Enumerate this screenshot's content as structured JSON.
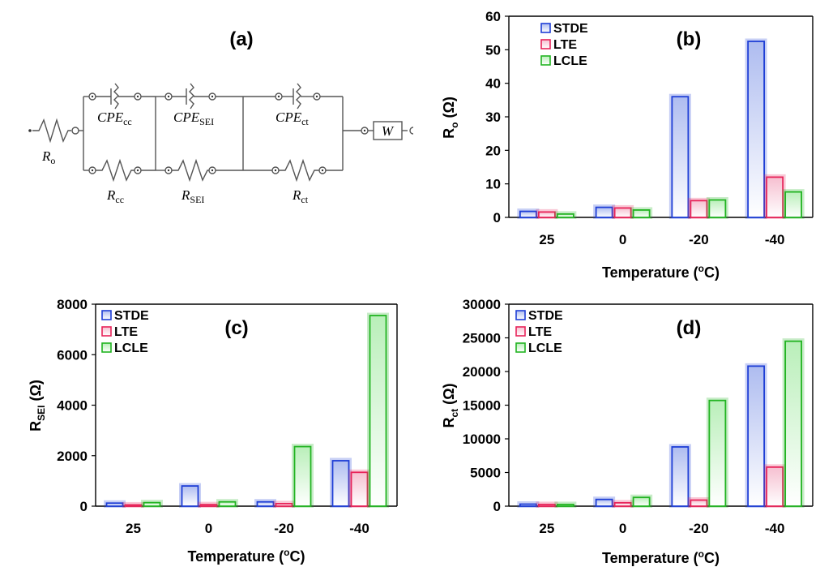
{
  "circuit": {
    "panel_label": "(a)",
    "labels": {
      "ro_main": "R",
      "ro_sub": "o",
      "cpe_cc_main": "CPE",
      "cpe_cc_sub": "cc",
      "cpe_sei_main": "CPE",
      "cpe_sei_sub": "SEI",
      "cpe_ct_main": "CPE",
      "cpe_ct_sub": "ct",
      "rcc_main": "R",
      "rcc_sub": "cc",
      "rsei_main": "R",
      "rsei_sub": "SEI",
      "rct_main": "R",
      "rct_sub": "ct",
      "w": "W"
    }
  },
  "colors": {
    "STDE": "#1f3fd6",
    "LTE": "#e8245a",
    "LCLE": "#22b422"
  },
  "chart_data": [
    {
      "id": "b",
      "type": "bar",
      "panel_label": "(b)",
      "categories": [
        "25",
        "0",
        "-20",
        "-40"
      ],
      "series": [
        {
          "name": "STDE",
          "values": [
            1.8,
            3.0,
            36.0,
            52.5
          ]
        },
        {
          "name": "LTE",
          "values": [
            1.6,
            2.8,
            5.0,
            12.0
          ]
        },
        {
          "name": "LCLE",
          "values": [
            1.0,
            2.2,
            5.2,
            7.6
          ]
        }
      ],
      "ylim": [
        0,
        60
      ],
      "yticks": [
        "0",
        "10",
        "20",
        "30",
        "40",
        "50",
        "60"
      ],
      "ylabel": {
        "main": "R",
        "sub": "o",
        "unit": " (Ω)"
      },
      "xlabel": {
        "before": "Temperature (",
        "sup": "o",
        "after": "C)"
      },
      "legend": "top-left"
    },
    {
      "id": "c",
      "type": "bar",
      "panel_label": "(c)",
      "categories": [
        "25",
        "0",
        "-20",
        "-40"
      ],
      "series": [
        {
          "name": "STDE",
          "values": [
            120,
            800,
            170,
            1800
          ]
        },
        {
          "name": "LTE",
          "values": [
            50,
            60,
            100,
            1340
          ]
        },
        {
          "name": "LCLE",
          "values": [
            140,
            170,
            2360,
            7550
          ]
        }
      ],
      "ylim": [
        0,
        8000
      ],
      "yticks": [
        "0",
        "2000",
        "4000",
        "6000",
        "8000"
      ],
      "ylabel": {
        "main": "R",
        "sub": "SEI",
        "unit": " (Ω)"
      },
      "xlabel": {
        "before": "Temperature (",
        "sup": "o",
        "after": "C)"
      },
      "legend": "top-left"
    },
    {
      "id": "d",
      "type": "bar",
      "panel_label": "(d)",
      "categories": [
        "25",
        "0",
        "-20",
        "-40"
      ],
      "series": [
        {
          "name": "STDE",
          "values": [
            300,
            1000,
            8800,
            20800
          ]
        },
        {
          "name": "LTE",
          "values": [
            250,
            500,
            900,
            5800
          ]
        },
        {
          "name": "LCLE",
          "values": [
            250,
            1300,
            15700,
            24500
          ]
        }
      ],
      "ylim": [
        0,
        30000
      ],
      "yticks": [
        "0",
        "5000",
        "10000",
        "15000",
        "20000",
        "25000",
        "30000"
      ],
      "ylabel": {
        "main": "R",
        "sub": "ct",
        "unit": " (Ω)"
      },
      "xlabel": {
        "before": "Temperature (",
        "sup": "o",
        "after": "C)"
      },
      "legend": "top-left"
    }
  ]
}
